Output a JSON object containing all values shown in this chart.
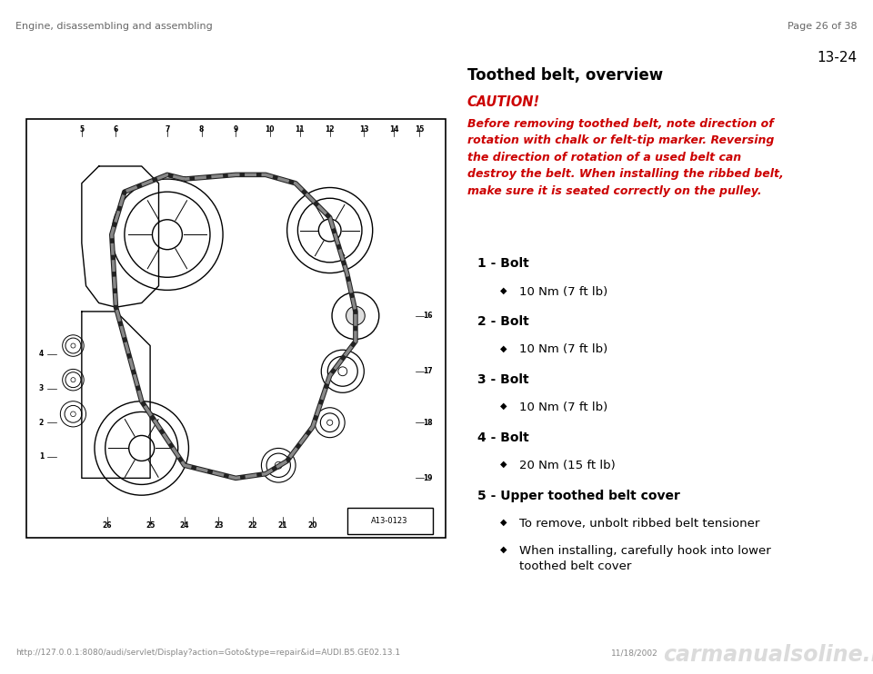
{
  "header_left": "Engine, disassembling and assembling",
  "header_right": "Page 26 of 38",
  "page_number": "13-24",
  "title": "Toothed belt, overview",
  "caution_label": "CAUTION!",
  "caution_text": "Before removing toothed belt, note direction of\nrotation with chalk or felt-tip marker. Reversing\nthe direction of rotation of a used belt can\ndestroy the belt. When installing the ribbed belt,\nmake sure it is seated correctly on the pulley.",
  "items": [
    {
      "label": "1 - Bolt",
      "bullets": [
        "10 Nm (7 ft lb)"
      ]
    },
    {
      "label": "2 - Bolt",
      "bullets": [
        "10 Nm (7 ft lb)"
      ]
    },
    {
      "label": "3 - Bolt",
      "bullets": [
        "10 Nm (7 ft lb)"
      ]
    },
    {
      "label": "4 - Bolt",
      "bullets": [
        "20 Nm (15 ft lb)"
      ]
    },
    {
      "label": "5 - Upper toothed belt cover",
      "bullets": [
        "To remove, unbolt ribbed belt tensioner",
        "When installing, carefully hook into lower\ntoothed belt cover"
      ]
    }
  ],
  "footer_url": "http://127.0.0.1:8080/audi/servlet/Display?action=Goto&type=repair&id=AUDI.B5.GE02.13.1",
  "footer_date": "11/18/2002",
  "footer_watermark": "carmanualsoline.info",
  "bg_color": "#ffffff",
  "header_color": "#666666",
  "text_color": "#000000",
  "red_color": "#cc0000",
  "diagram_label": "A13-0123",
  "diagram_border_color": "#000000",
  "line_color": "#000000"
}
